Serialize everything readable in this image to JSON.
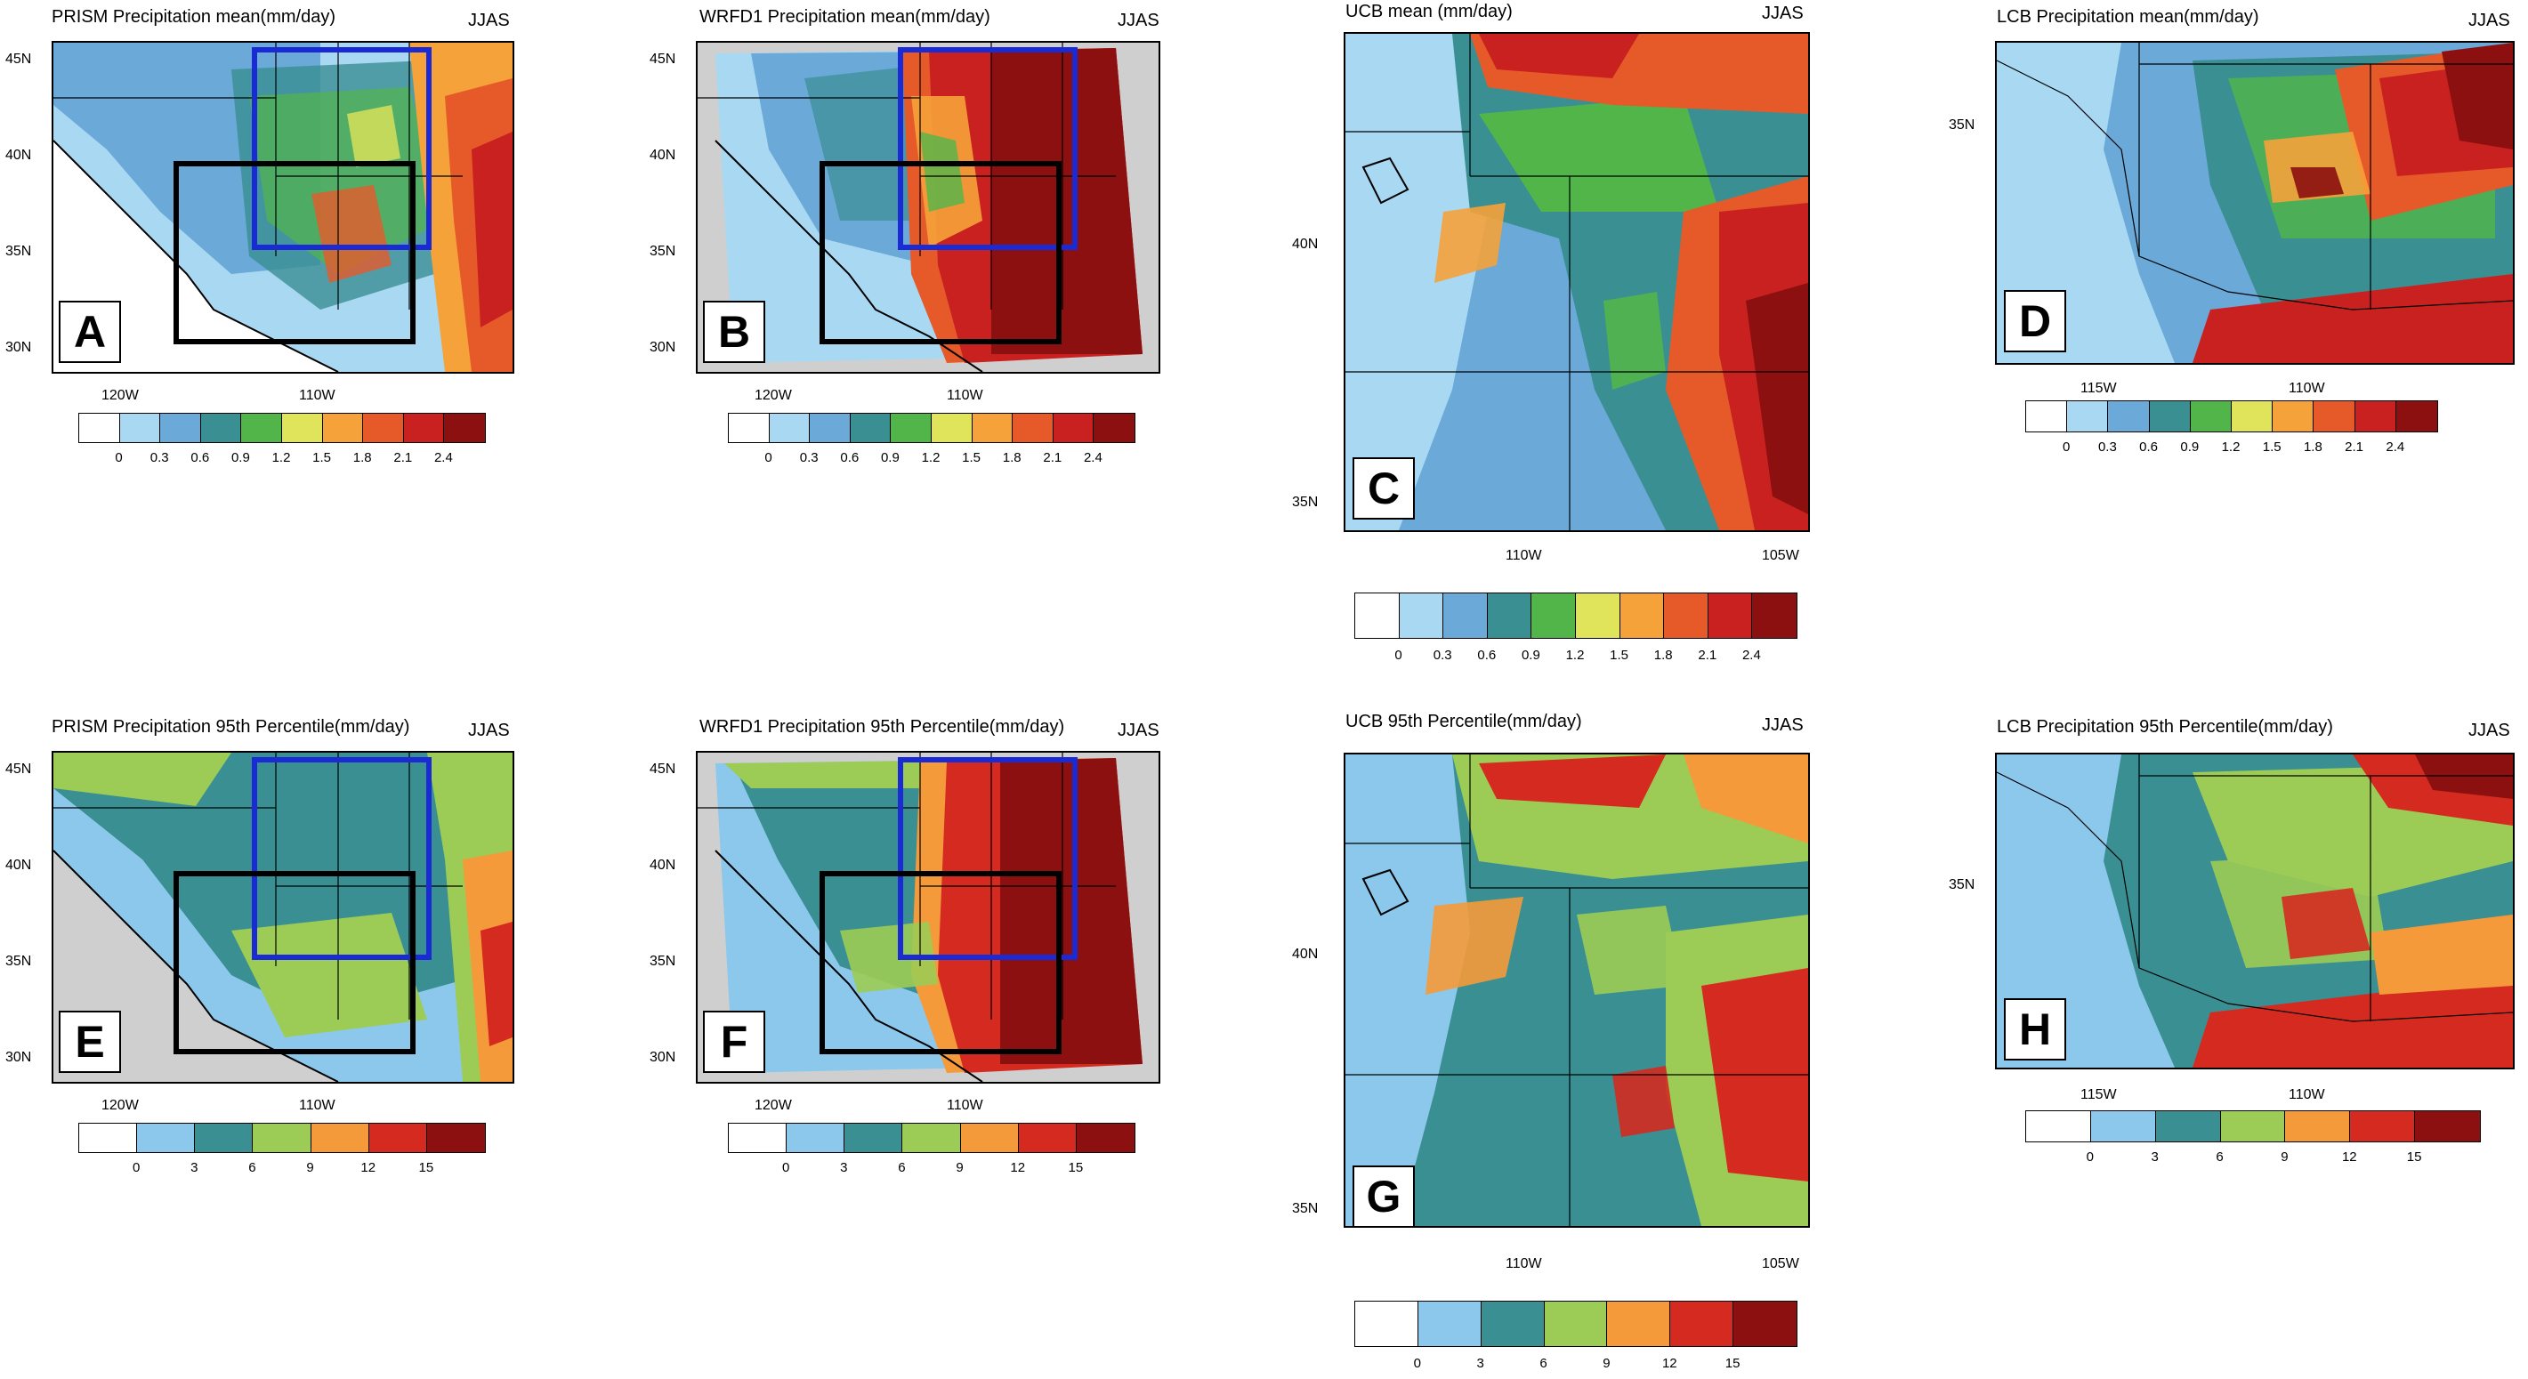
{
  "palettes": {
    "mean": [
      "#ffffff",
      "#a9d8f2",
      "#6aa9d8",
      "#3a8f93",
      "#52b54a",
      "#dfe45a",
      "#f5a23a",
      "#e65a2a",
      "#c92020",
      "#8c1010"
    ],
    "p95": [
      "#ffffff",
      "#8cc8ec",
      "#3a8f93",
      "#9ccc55",
      "#f59a3a",
      "#d52a20",
      "#8c1010"
    ]
  },
  "panels": [
    {
      "id": "A",
      "title": "PRISM Precipitation mean(mm/day)",
      "season": "JJAS",
      "label": "A",
      "x_ticks": [
        "120W",
        "110W"
      ],
      "y_ticks": [
        "45N",
        "40N",
        "35N",
        "30N"
      ],
      "colorbar_labels": [
        "0",
        "0.3",
        "0.6",
        "0.9",
        "1.2",
        "1.5",
        "1.8",
        "2.1",
        "2.4"
      ]
    },
    {
      "id": "B",
      "title": "WRFD1 Precipitation mean(mm/day)",
      "season": "JJAS",
      "label": "B",
      "x_ticks": [
        "120W",
        "110W"
      ],
      "y_ticks": [
        "45N",
        "40N",
        "35N",
        "30N"
      ],
      "colorbar_labels": [
        "0",
        "0.3",
        "0.6",
        "0.9",
        "1.2",
        "1.5",
        "1.8",
        "2.1",
        "2.4"
      ]
    },
    {
      "id": "C",
      "title": "UCB  mean (mm/day)",
      "season": "JJAS",
      "label": "C",
      "x_ticks": [
        "110W",
        "105W"
      ],
      "y_ticks": [
        "40N",
        "35N"
      ],
      "colorbar_labels": [
        "0",
        "0.3",
        "0.6",
        "0.9",
        "1.2",
        "1.5",
        "1.8",
        "2.1",
        "2.4"
      ]
    },
    {
      "id": "D",
      "title": "LCB Precipitation mean(mm/day)",
      "season": "JJAS",
      "label": "D",
      "x_ticks": [
        "115W",
        "110W"
      ],
      "y_ticks": [
        "35N"
      ],
      "colorbar_labels": [
        "0",
        "0.3",
        "0.6",
        "0.9",
        "1.2",
        "1.5",
        "1.8",
        "2.1",
        "2.4"
      ]
    },
    {
      "id": "E",
      "title": "PRISM Precipitation 95th Percentile(mm/day)",
      "season": "JJAS",
      "label": "E",
      "x_ticks": [
        "120W",
        "110W"
      ],
      "y_ticks": [
        "45N",
        "40N",
        "35N",
        "30N"
      ],
      "colorbar_labels": [
        "0",
        "3",
        "6",
        "9",
        "12",
        "15"
      ]
    },
    {
      "id": "F",
      "title": "WRFD1 Precipitation 95th Percentile(mm/day)",
      "season": "JJAS",
      "label": "F",
      "x_ticks": [
        "120W",
        "110W"
      ],
      "y_ticks": [
        "45N",
        "40N",
        "35N",
        "30N"
      ],
      "colorbar_labels": [
        "0",
        "3",
        "6",
        "9",
        "12",
        "15"
      ]
    },
    {
      "id": "G",
      "title": "UCB 95th Percentile(mm/day)",
      "season": "JJAS",
      "label": "G",
      "x_ticks": [
        "110W",
        "105W"
      ],
      "y_ticks": [
        "40N",
        "35N"
      ],
      "colorbar_labels": [
        "0",
        "3",
        "6",
        "9",
        "12",
        "15"
      ]
    },
    {
      "id": "H",
      "title": "LCB Precipitation 95th Percentile(mm/day)",
      "season": "JJAS",
      "label": "H",
      "x_ticks": [
        "115W",
        "110W"
      ],
      "y_ticks": [
        "35N"
      ],
      "colorbar_labels": [
        "0",
        "3",
        "6",
        "9",
        "12",
        "15"
      ]
    }
  ]
}
